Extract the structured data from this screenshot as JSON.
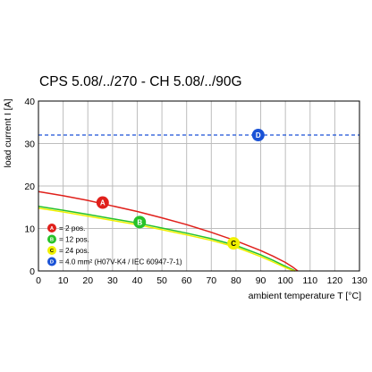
{
  "chart_data": {
    "type": "line",
    "title": "CPS 5.08/../270 - CH 5.08/../90G",
    "xlabel": "ambient temperature T [°C]",
    "ylabel": "load current I [A]",
    "xlim": [
      0,
      130
    ],
    "ylim": [
      0,
      40
    ],
    "x_ticks": [
      "0",
      "10",
      "20",
      "30",
      "40",
      "50",
      "60",
      "70",
      "80",
      "90",
      "100",
      "110",
      "120",
      "130"
    ],
    "y_ticks": [
      "0",
      "10",
      "20",
      "30",
      "40"
    ],
    "grid": true,
    "legend_position": "bottom-left",
    "series": [
      {
        "marker": "A",
        "legend_label": "= 2 pos.",
        "color": "#e0201b",
        "x": [
          0,
          10,
          20,
          30,
          40,
          50,
          60,
          70,
          80,
          90,
          95,
          100,
          103,
          105
        ],
        "y": [
          18.7,
          17.7,
          16.6,
          15.3,
          14.0,
          12.5,
          10.9,
          9.1,
          7.1,
          4.8,
          3.5,
          2.0,
          0.9,
          0
        ]
      },
      {
        "marker": "B",
        "legend_label": "= 12 pos.",
        "color": "#27c229",
        "x": [
          0,
          10,
          20,
          30,
          40,
          50,
          60,
          70,
          80,
          90,
          95,
          100,
          103,
          104
        ],
        "y": [
          15.2,
          14.3,
          13.3,
          12.3,
          11.3,
          10.1,
          8.9,
          7.6,
          6.0,
          3.8,
          2.5,
          1.1,
          0.3,
          0
        ]
      },
      {
        "marker": "C",
        "legend_label": "= 24 pos.",
        "color": "#f0f000",
        "x": [
          0,
          10,
          20,
          30,
          40,
          50,
          60,
          70,
          80,
          90,
          95,
          100,
          103,
          104
        ],
        "y": [
          14.8,
          13.9,
          12.9,
          11.9,
          10.9,
          9.7,
          8.5,
          7.2,
          5.6,
          3.4,
          2.1,
          0.8,
          0.1,
          0
        ]
      },
      {
        "marker": "D",
        "legend_label": "= 4.0 mm² (H07V-K4 / IEC 60947-7-1)",
        "color": "#1a52d6",
        "style": "dashed",
        "x": [
          0,
          130
        ],
        "y": [
          32,
          32
        ]
      }
    ],
    "marker_points": [
      {
        "label": "A",
        "x": 26,
        "y": 16.1
      },
      {
        "label": "B",
        "x": 41,
        "y": 11.5
      },
      {
        "label": "C",
        "x": 79,
        "y": 6.5
      },
      {
        "label": "D",
        "x": 89,
        "y": 32
      }
    ]
  }
}
